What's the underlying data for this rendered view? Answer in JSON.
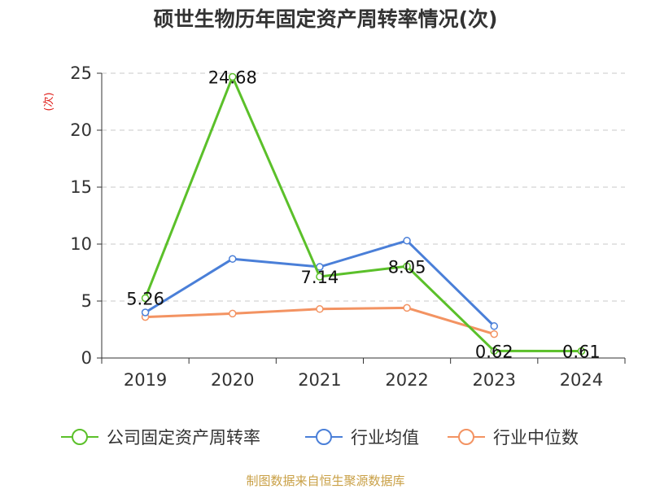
{
  "title": "硕世生物历年固定资产周转率情况(次)",
  "source": "制图数据来自恒生聚源数据库",
  "chart_data": {
    "type": "line",
    "title": "硕世生物历年固定资产周转率情况(次)",
    "ylabel": "(次)",
    "categories": [
      "2019",
      "2020",
      "2021",
      "2022",
      "2023",
      "2024"
    ],
    "ylim": [
      0,
      25
    ],
    "yticks": [
      0,
      5,
      10,
      15,
      20,
      25
    ],
    "grid": true,
    "legend_position": "bottom",
    "series": [
      {
        "name": "公司固定资产周转率",
        "color": "#5bc02a",
        "values": [
          5.26,
          24.68,
          7.14,
          8.05,
          0.62,
          0.61
        ],
        "labels": [
          "5.26",
          "24.68",
          "7.14",
          "8.05",
          "0.62",
          "0.61"
        ]
      },
      {
        "name": "行业均值",
        "color": "#4a7fd8",
        "values": [
          4.0,
          8.7,
          8.0,
          10.3,
          2.8,
          null
        ]
      },
      {
        "name": "行业中位数",
        "color": "#f39362",
        "values": [
          3.6,
          3.9,
          4.3,
          4.4,
          2.1,
          null
        ]
      }
    ]
  }
}
